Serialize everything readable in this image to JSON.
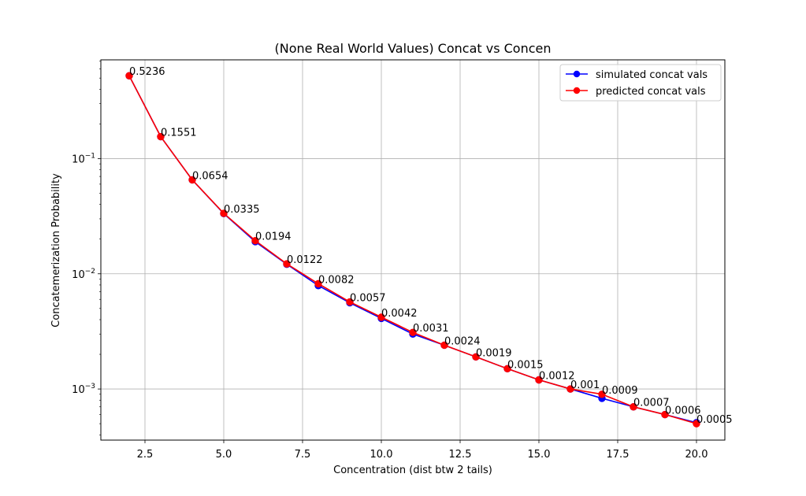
{
  "chart_data": {
    "type": "line",
    "title": "(None Real World Values) Concat vs Concen",
    "xlabel": "Concentration (dist btw 2 tails)",
    "ylabel": "Concatemerization Probability",
    "y_scale": "log",
    "xlim": [
      1.1,
      20.9
    ],
    "ylim": [
      0.00036,
      0.72
    ],
    "x_ticks": [
      2.5,
      5.0,
      7.5,
      10.0,
      12.5,
      15.0,
      17.5,
      20.0
    ],
    "x_tick_labels": [
      "2.5",
      "5.0",
      "7.5",
      "10.0",
      "12.5",
      "15.0",
      "17.5",
      "20.0"
    ],
    "y_ticks": [
      {
        "value": 0.1,
        "base": "10",
        "exp": "−1"
      },
      {
        "value": 0.01,
        "base": "10",
        "exp": "−2"
      },
      {
        "value": 0.001,
        "base": "10",
        "exp": "−3"
      }
    ],
    "grid": true,
    "legend_position": "top-right",
    "x": [
      2,
      3,
      4,
      5,
      6,
      7,
      8,
      9,
      10,
      11,
      12,
      13,
      14,
      15,
      16,
      17,
      18,
      19,
      20
    ],
    "series": [
      {
        "name": "simulated concat vals",
        "color": "#0000ff",
        "values": [
          0.5236,
          0.1551,
          0.0654,
          0.0333,
          0.019,
          0.0121,
          0.0079,
          0.0056,
          0.0041,
          0.003,
          0.0024,
          0.0019,
          0.0015,
          0.0012,
          0.001,
          0.00083,
          0.0007,
          0.0006,
          0.00051
        ]
      },
      {
        "name": "predicted concat vals",
        "color": "#ff0000",
        "values": [
          0.5236,
          0.1551,
          0.0654,
          0.0335,
          0.0194,
          0.0122,
          0.0082,
          0.0057,
          0.0042,
          0.0031,
          0.0024,
          0.0019,
          0.0015,
          0.0012,
          0.001,
          0.0009,
          0.0007,
          0.0006,
          0.0005
        ]
      }
    ],
    "data_labels": [
      "0.5236",
      "0.1551",
      "0.0654",
      "0.0335",
      "0.0194",
      "0.0122",
      "0.0082",
      "0.0057",
      "0.0042",
      "0.0031",
      "0.0024",
      "0.0019",
      "0.0015",
      "0.0012",
      "0.001",
      "0.0009",
      "0.0007",
      "0.0006",
      "0.0005"
    ]
  }
}
